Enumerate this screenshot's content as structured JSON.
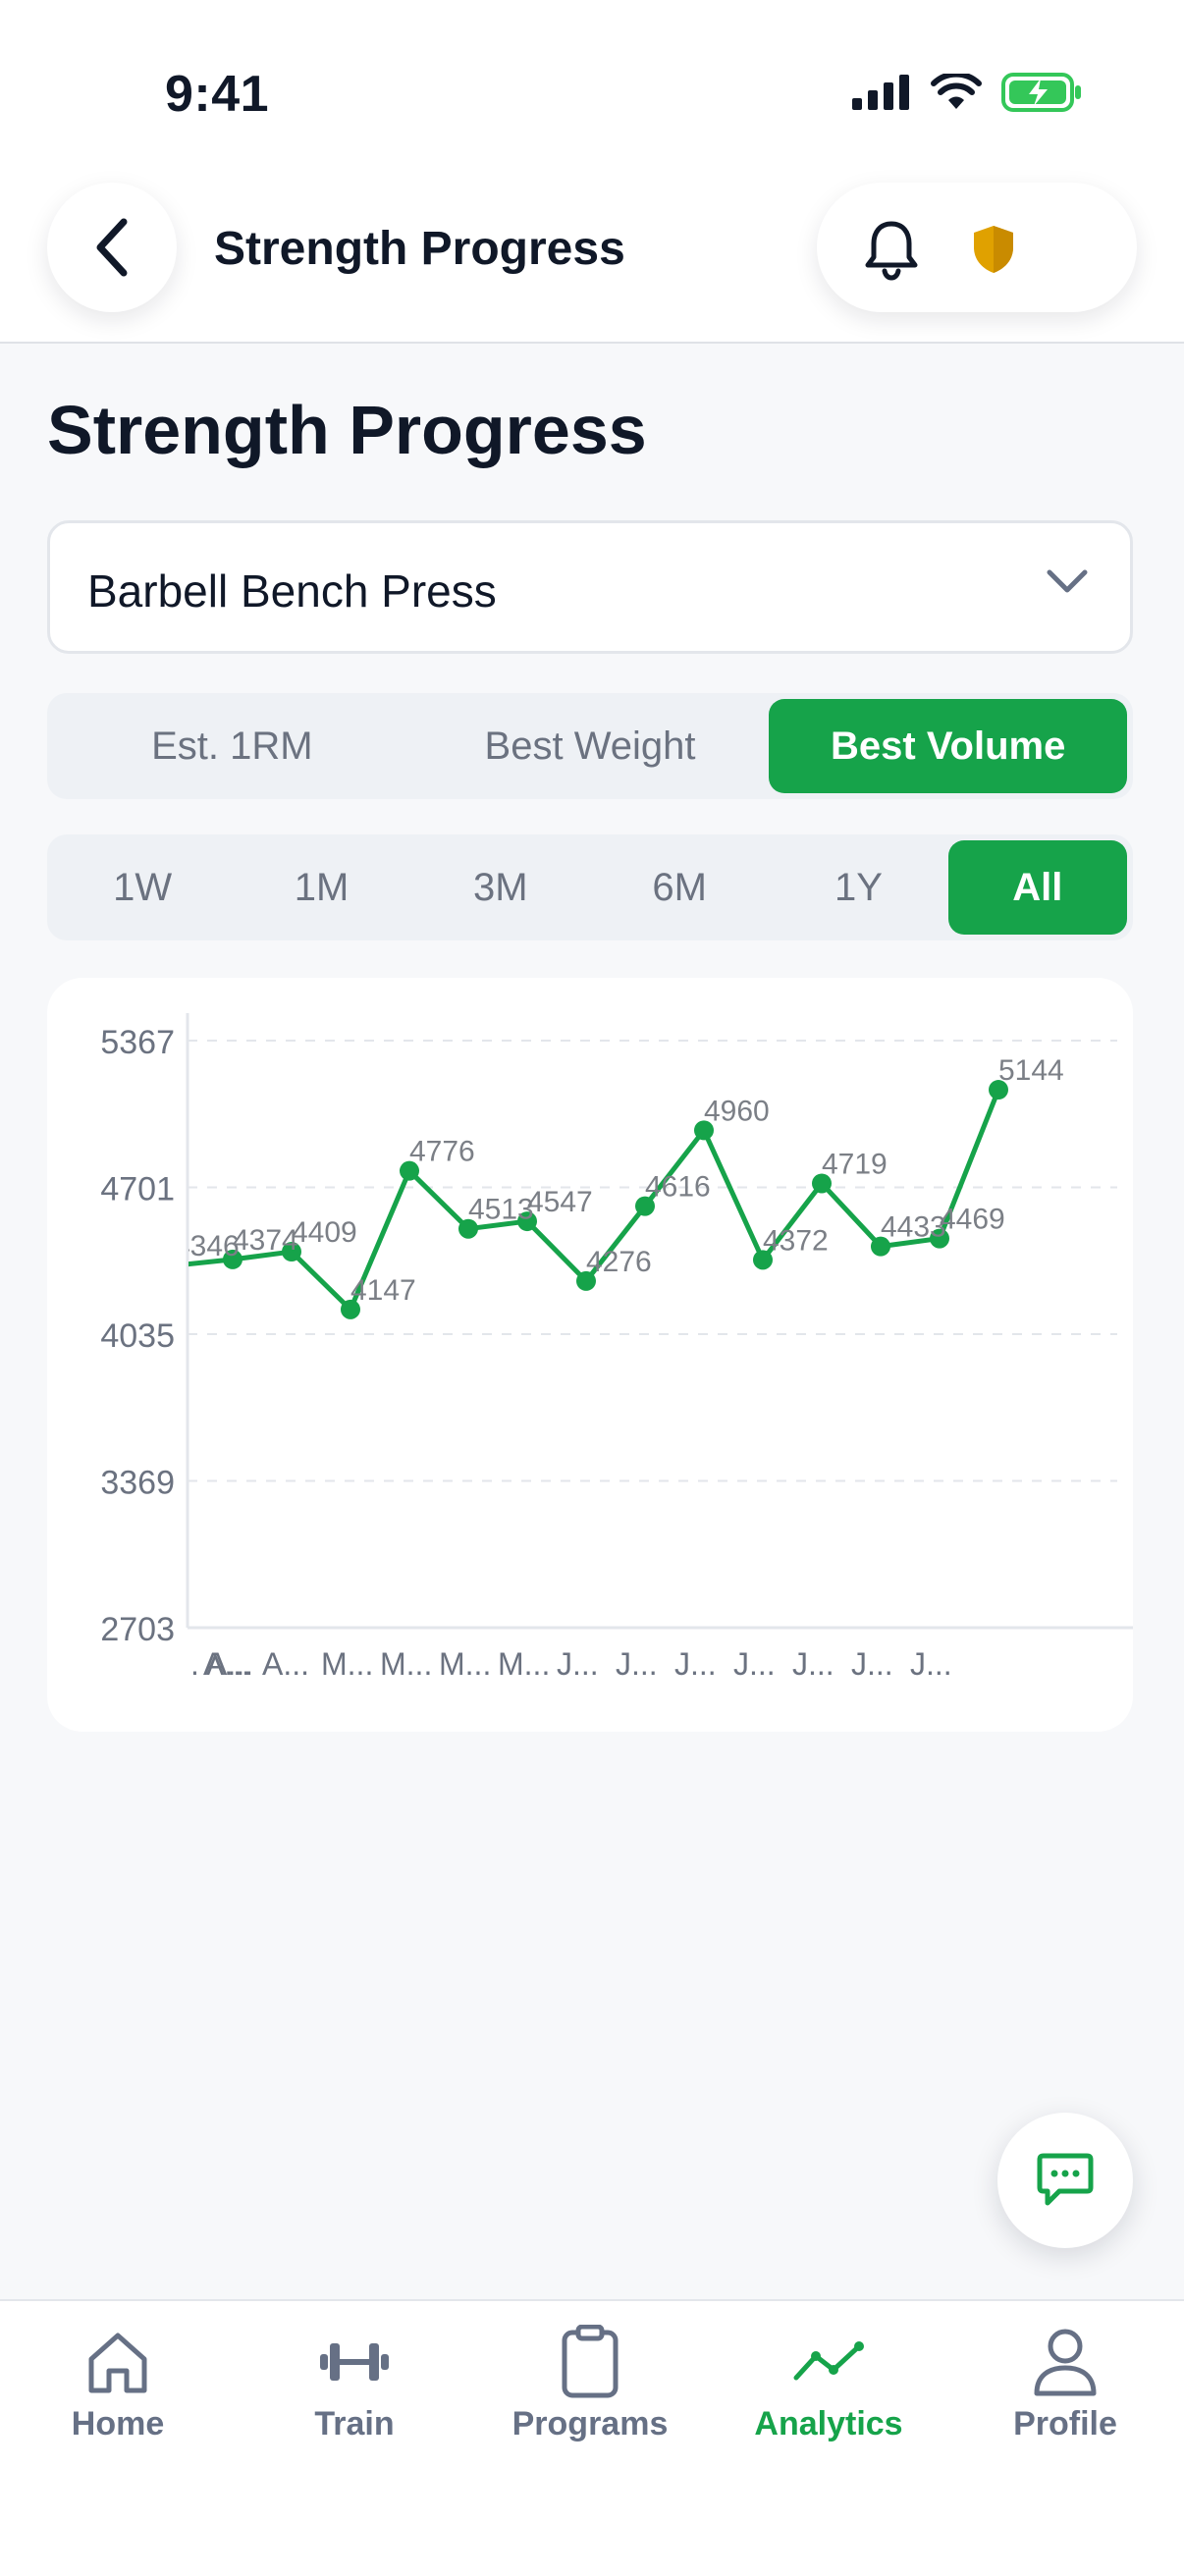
{
  "status_bar": {
    "time": "9:41"
  },
  "header": {
    "title": "Strength Progress"
  },
  "page": {
    "title": "Strength Progress"
  },
  "exercise_select": {
    "value": "Barbell Bench Press"
  },
  "metric_tabs": [
    {
      "label": "Est. 1RM",
      "active": false
    },
    {
      "label": "Best Weight",
      "active": false
    },
    {
      "label": "Best Volume",
      "active": true
    }
  ],
  "range_tabs": [
    {
      "label": "1W",
      "active": false
    },
    {
      "label": "1M",
      "active": false
    },
    {
      "label": "3M",
      "active": false
    },
    {
      "label": "6M",
      "active": false
    },
    {
      "label": "1Y",
      "active": false
    },
    {
      "label": "All",
      "active": true
    }
  ],
  "chart_data": {
    "type": "line",
    "y_ticks": [
      2703,
      3369,
      4035,
      4701,
      5367
    ],
    "ylim": [
      2703,
      5367
    ],
    "x_tick_labels": [
      ". A...",
      "A...",
      "A...",
      "M...",
      "M...",
      "M...",
      "M...",
      "J...",
      "J...",
      "J...",
      "J...",
      "J...",
      "J...",
      "J..."
    ],
    "point_labels": [
      "4346",
      "4374",
      "4409",
      "4147",
      "4776",
      "4513",
      "4547",
      "4276",
      "4616",
      "4960",
      "4372",
      "4719",
      "4433",
      "4469",
      "5144"
    ],
    "values": [
      4346,
      4374,
      4409,
      4147,
      4776,
      4513,
      4547,
      4276,
      4616,
      4960,
      4372,
      4719,
      4433,
      4469,
      5144
    ],
    "grid": true,
    "color": "#16a34a"
  },
  "nav": [
    {
      "label": "Home",
      "icon": "home-icon",
      "active": false
    },
    {
      "label": "Train",
      "icon": "dumbbell-icon",
      "active": false
    },
    {
      "label": "Programs",
      "icon": "clipboard-icon",
      "active": false
    },
    {
      "label": "Analytics",
      "icon": "analytics-icon",
      "active": true
    },
    {
      "label": "Profile",
      "icon": "user-icon",
      "active": false
    }
  ],
  "colors": {
    "accent": "#16a34a",
    "text": "#101828",
    "muted": "#6b7280",
    "shield": "#e0a100"
  }
}
